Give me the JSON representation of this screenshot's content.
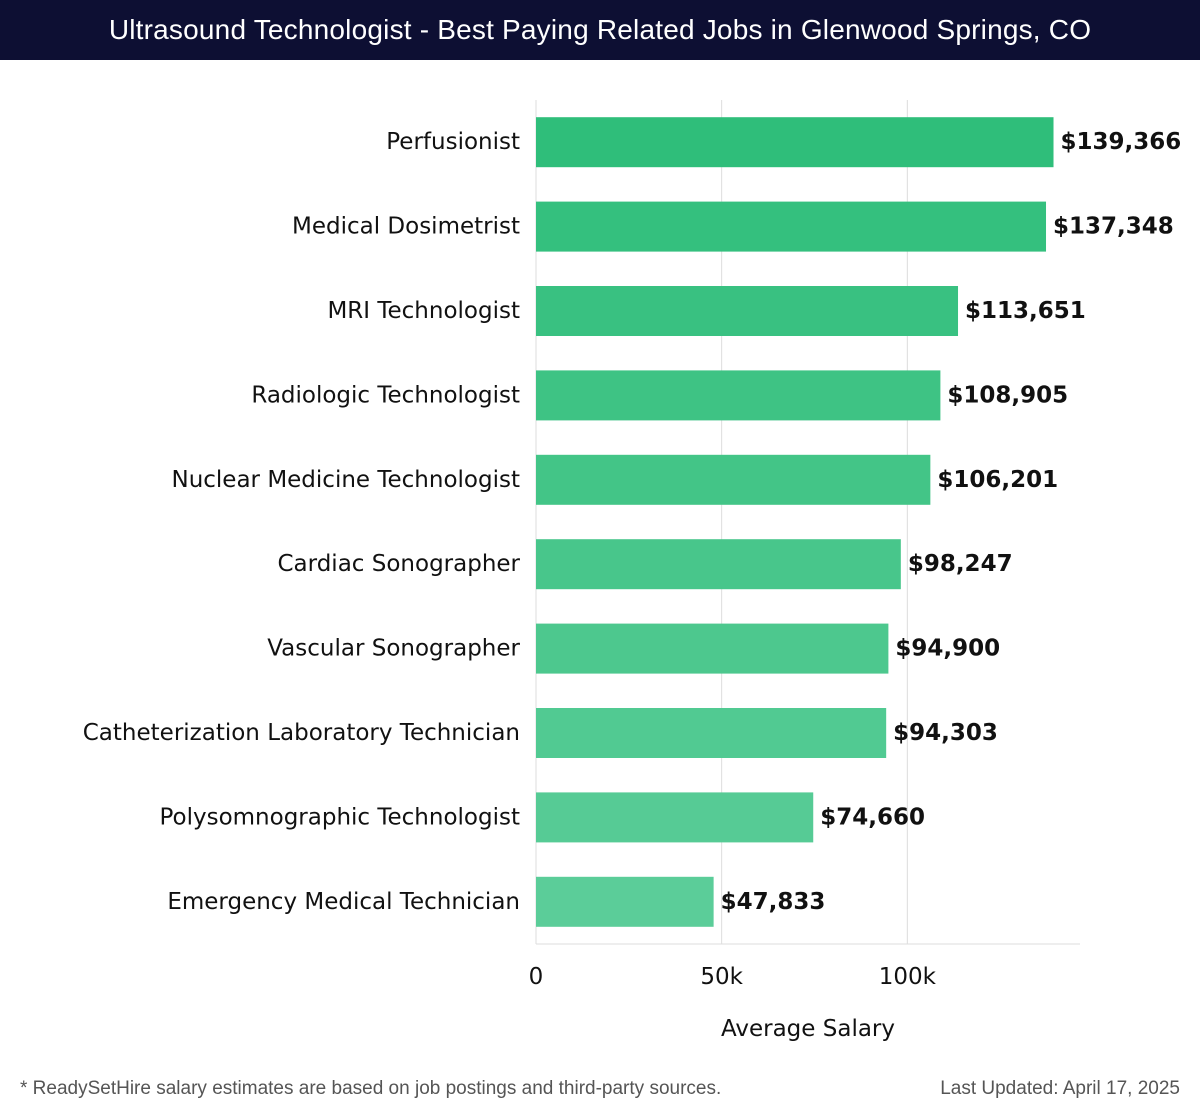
{
  "header": {
    "title": "Ultrasound Technologist - Best Paying Related Jobs in Glenwood Springs, CO"
  },
  "footer": {
    "note": "* ReadySetHire salary estimates are based on job postings and third-party sources.",
    "updated": "Last Updated: April 17, 2025"
  },
  "colors": {
    "header_bg": "#0d0f33",
    "bar_top": "#2bbd77",
    "bar_bottom": "#58cc97",
    "grid": "#dddddd",
    "label": "#111111"
  },
  "chart_data": {
    "type": "bar",
    "orientation": "horizontal",
    "categories": [
      "Perfusionist",
      "Medical Dosimetrist",
      "MRI Technologist",
      "Radiologic Technologist",
      "Nuclear Medicine Technologist",
      "Cardiac Sonographer",
      "Vascular Sonographer",
      "Catheterization Laboratory Technician",
      "Polysomnographic Technologist",
      "Emergency Medical Technician"
    ],
    "values": [
      139366,
      137348,
      113651,
      108905,
      106201,
      98247,
      94900,
      94303,
      74660,
      47833
    ],
    "value_labels": [
      "$139,366",
      "$137,348",
      "$113,651",
      "$108,905",
      "$106,201",
      "$98,247",
      "$94,900",
      "$94,303",
      "$74,660",
      "$47,833"
    ],
    "xlabel": "Average Salary",
    "ylabel": "",
    "xlim": [
      0,
      146500
    ],
    "xticks": [
      0,
      50000,
      100000
    ],
    "xtick_labels": [
      "0",
      "50k",
      "100k"
    ],
    "grid": true,
    "legend": "none"
  }
}
